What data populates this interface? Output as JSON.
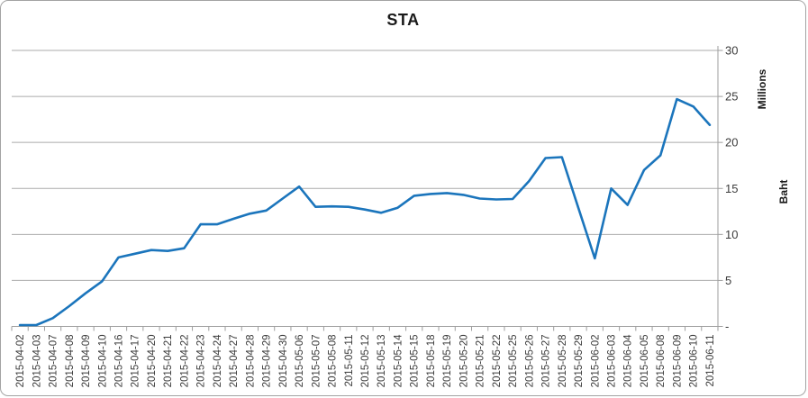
{
  "chart_data": {
    "type": "line",
    "title": "STA",
    "ylabel": "Baht",
    "y_units_label": "Millions",
    "ylim": [
      0,
      30
    ],
    "y_tick_step": 5,
    "y_tick_labels": [
      "-",
      "5",
      "10",
      "15",
      "20",
      "25",
      "30"
    ],
    "y_axis_side": "right",
    "x_label_rotation": -90,
    "grid": true,
    "legend": "none",
    "categories": [
      "2015-04-02",
      "2015-04-03",
      "2015-04-07",
      "2015-04-08",
      "2015-04-09",
      "2015-04-10",
      "2015-04-16",
      "2015-04-17",
      "2015-04-20",
      "2015-04-21",
      "2015-04-22",
      "2015-04-23",
      "2015-04-24",
      "2015-04-27",
      "2015-04-28",
      "2015-04-29",
      "2015-04-30",
      "2015-05-06",
      "2015-05-07",
      "2015-05-08",
      "2015-05-11",
      "2015-05-12",
      "2015-05-13",
      "2015-05-14",
      "2015-05-15",
      "2015-05-18",
      "2015-05-19",
      "2015-05-20",
      "2015-05-21",
      "2015-05-22",
      "2015-05-25",
      "2015-05-26",
      "2015-05-27",
      "2015-05-28",
      "2015-05-29",
      "2015-06-02",
      "2015-06-03",
      "2015-06-04",
      "2015-06-05",
      "2015-06-08",
      "2015-06-09",
      "2015-06-10",
      "2015-06-11"
    ],
    "series": [
      {
        "name": "STA",
        "color": "#1B75BC",
        "values": [
          0.15,
          0.15,
          0.9,
          2.2,
          3.6,
          4.9,
          7.5,
          7.9,
          8.3,
          8.2,
          8.5,
          11.1,
          11.1,
          11.7,
          12.25,
          12.6,
          13.9,
          15.2,
          13.0,
          13.05,
          13.0,
          12.7,
          12.35,
          12.9,
          14.2,
          14.4,
          14.5,
          14.3,
          13.9,
          13.8,
          13.85,
          15.8,
          18.3,
          18.4,
          12.9,
          7.4,
          15.0,
          13.2,
          17.0,
          18.6,
          24.7,
          23.9,
          21.9
        ]
      }
    ],
    "colors": {
      "line": "#1B75BC",
      "gridline": "#ABABAB",
      "axis": "#9E9E9E",
      "tick_text": "#3B3B3B",
      "title_text": "#1A1A1A",
      "background": "#FFFFFF",
      "frame_border": "#A3A3A3"
    }
  }
}
